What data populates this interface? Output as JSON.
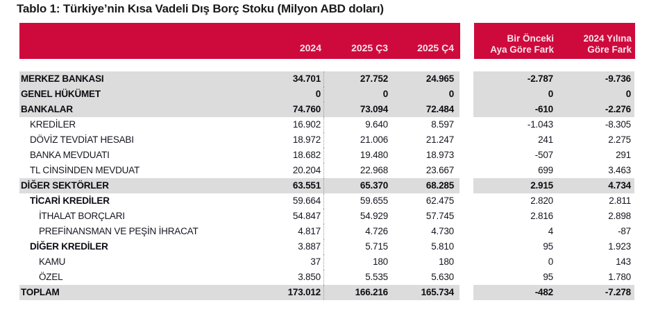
{
  "title": "Tablo 1: Türkiye’nin Kısa Vadeli Dış Borç Stoku (Milyon ABD doları)",
  "colors": {
    "header_bg": "#CE0A3C",
    "header_text": "#F9E4EB",
    "shaded_row_bg": "#DCDCDC"
  },
  "table": {
    "header": {
      "y2024": "2024",
      "y2025q3": "2025 Ç3",
      "y2025q4": "2025 Ç4",
      "fark_ay_line1": "Bir Önceki",
      "fark_ay_line2": "Aya Göre Fark",
      "fark_yil_line1": "2024 Yılına",
      "fark_yil_line2": "Göre Fark"
    },
    "rows": [
      {
        "label": "MERKEZ BANKASI",
        "indent": 0,
        "bold_label": true,
        "bold_values": true,
        "shaded": true,
        "values": [
          "34.701",
          "27.752",
          "24.965",
          "-2.787",
          "-9.736"
        ]
      },
      {
        "label": "GENEL HÜKÜMET",
        "indent": 0,
        "bold_label": true,
        "bold_values": true,
        "shaded": true,
        "values": [
          "0",
          "0",
          "0",
          "0",
          "0"
        ]
      },
      {
        "label": "BANKALAR",
        "indent": 0,
        "bold_label": true,
        "bold_values": true,
        "shaded": true,
        "values": [
          "74.760",
          "73.094",
          "72.484",
          "-610",
          "-2.276"
        ]
      },
      {
        "label": "KREDİLER",
        "indent": 1,
        "bold_label": false,
        "bold_values": false,
        "shaded": false,
        "values": [
          "16.902",
          "9.640",
          "8.597",
          "-1.043",
          "-8.305"
        ]
      },
      {
        "label": "DÖVİZ TEVDİAT HESABI",
        "indent": 1,
        "bold_label": false,
        "bold_values": false,
        "shaded": false,
        "values": [
          "18.972",
          "21.006",
          "21.247",
          "241",
          "2.275"
        ]
      },
      {
        "label": "BANKA MEVDUATI",
        "indent": 1,
        "bold_label": false,
        "bold_values": false,
        "shaded": false,
        "values": [
          "18.682",
          "19.480",
          "18.973",
          "-507",
          "291"
        ]
      },
      {
        "label": "TL CİNSİNDEN MEVDUAT",
        "indent": 1,
        "bold_label": false,
        "bold_values": false,
        "shaded": false,
        "values": [
          "20.204",
          "22.968",
          "23.667",
          "699",
          "3.463"
        ]
      },
      {
        "label": "DİĞER SEKTÖRLER",
        "indent": 0,
        "bold_label": true,
        "bold_values": true,
        "shaded": true,
        "values": [
          "63.551",
          "65.370",
          "68.285",
          "2.915",
          "4.734"
        ]
      },
      {
        "label": "TİCARİ KREDİLER",
        "indent": 1,
        "bold_label": true,
        "bold_values": false,
        "shaded": false,
        "values": [
          "59.664",
          "59.655",
          "62.475",
          "2.820",
          "2.811"
        ]
      },
      {
        "label": "İTHALAT BORÇLARI",
        "indent": 2,
        "bold_label": false,
        "bold_values": false,
        "shaded": false,
        "values": [
          "54.847",
          "54.929",
          "57.745",
          "2.816",
          "2.898"
        ]
      },
      {
        "label": "PREFİNANSMAN VE PEŞİN İHRACAT",
        "indent": 2,
        "bold_label": false,
        "bold_values": false,
        "shaded": false,
        "values": [
          "4.817",
          "4.726",
          "4.730",
          "4",
          "-87"
        ]
      },
      {
        "label": "DİĞER KREDİLER",
        "indent": 1,
        "bold_label": true,
        "bold_values": false,
        "shaded": false,
        "values": [
          "3.887",
          "5.715",
          "5.810",
          "95",
          "1.923"
        ]
      },
      {
        "label": "KAMU",
        "indent": 2,
        "bold_label": false,
        "bold_values": false,
        "shaded": false,
        "values": [
          "37",
          "180",
          "180",
          "0",
          "143"
        ]
      },
      {
        "label": "ÖZEL",
        "indent": 2,
        "bold_label": false,
        "bold_values": false,
        "shaded": false,
        "values": [
          "3.850",
          "5.535",
          "5.630",
          "95",
          "1.780"
        ]
      },
      {
        "label": "TOPLAM",
        "indent": 0,
        "bold_label": true,
        "bold_values": true,
        "shaded": true,
        "values": [
          "173.012",
          "166.216",
          "165.734",
          "-482",
          "-7.278"
        ]
      }
    ]
  }
}
